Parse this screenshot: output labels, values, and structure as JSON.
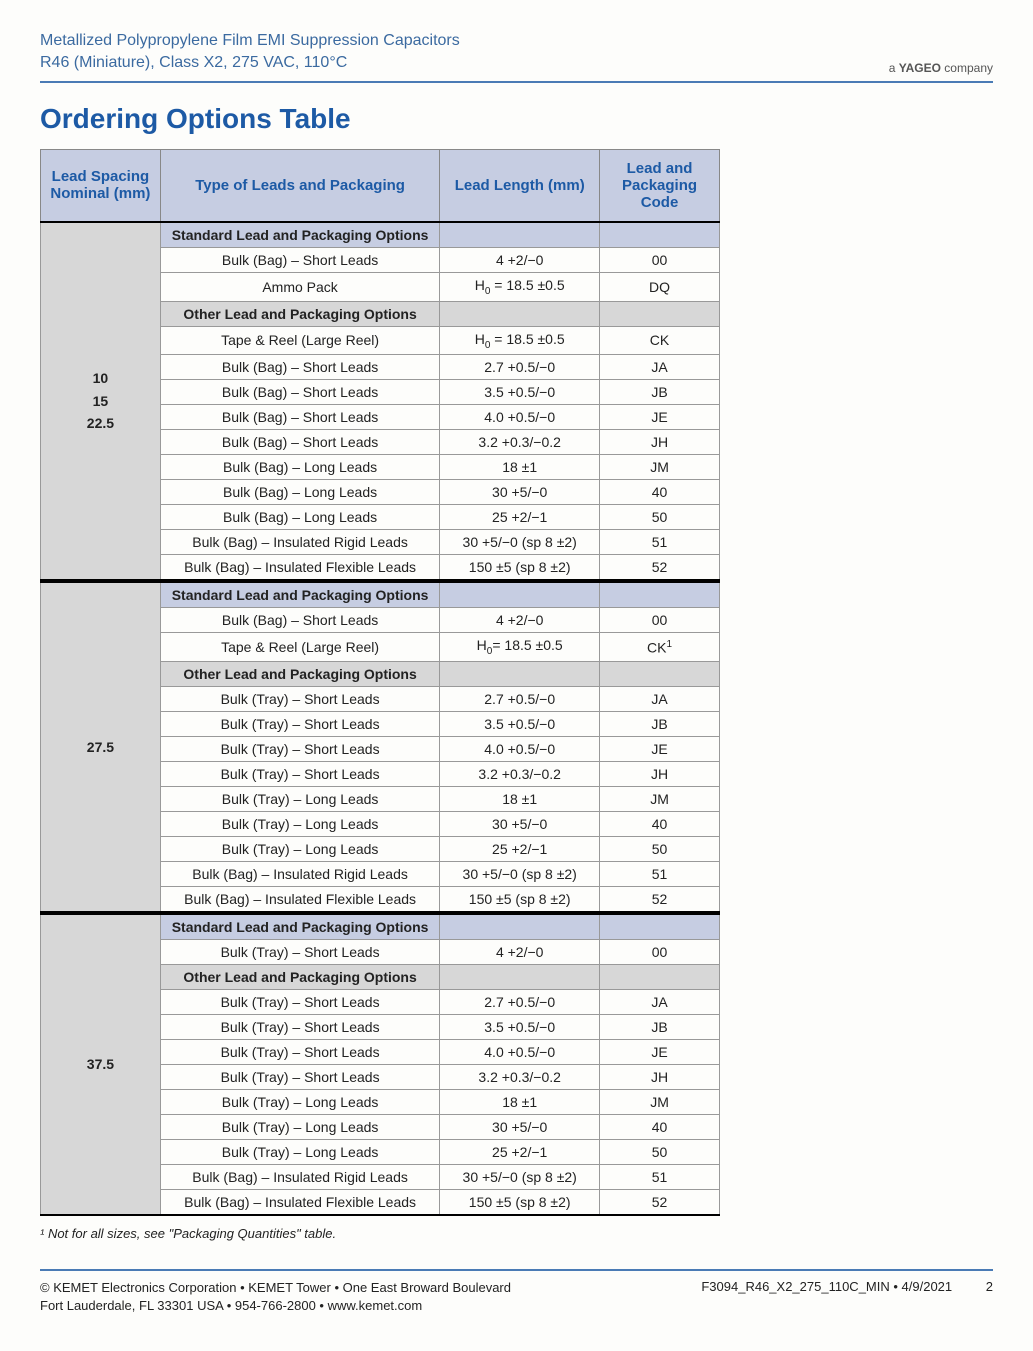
{
  "header": {
    "line1": "Metallized Polypropylene Film EMI Suppression Capacitors",
    "line2": "R46 (Miniature), Class X2, 275 VAC, 110°C",
    "company": "a YAGEO company"
  },
  "title": "Ordering Options Table",
  "columns": {
    "c1": "Lead Spacing Nominal (mm)",
    "c2": "Type of Leads and Packaging",
    "c3": "Lead Length (mm)",
    "c4": "Lead and Packaging Code"
  },
  "section_labels": {
    "std": "Standard Lead and Packaging Options",
    "other": "Other Lead and Packaging Options"
  },
  "blocks": [
    {
      "spacing": "10\n15\n22.5",
      "standard": [
        {
          "type": "Bulk (Bag) – Short Leads",
          "len": "4 +2/−0",
          "code": "00"
        },
        {
          "type": "Ammo Pack",
          "len": "H0 = 18.5 ±0.5",
          "code": "DQ",
          "h0sub": true
        }
      ],
      "other": [
        {
          "type": "Tape & Reel (Large Reel)",
          "len": "H0 = 18.5 ±0.5",
          "code": "CK",
          "h0sub": true
        },
        {
          "type": "Bulk (Bag) – Short Leads",
          "len": "2.7 +0.5/−0",
          "code": "JA"
        },
        {
          "type": "Bulk (Bag) – Short Leads",
          "len": "3.5 +0.5/−0",
          "code": "JB"
        },
        {
          "type": "Bulk (Bag) – Short Leads",
          "len": "4.0 +0.5/−0",
          "code": "JE"
        },
        {
          "type": "Bulk (Bag) – Short Leads",
          "len": "3.2 +0.3/−0.2",
          "code": "JH"
        },
        {
          "type": "Bulk (Bag) – Long Leads",
          "len": "18 ±1",
          "code": "JM"
        },
        {
          "type": "Bulk (Bag) – Long Leads",
          "len": "30 +5/−0",
          "code": "40"
        },
        {
          "type": "Bulk (Bag) – Long Leads",
          "len": "25 +2/−1",
          "code": "50"
        },
        {
          "type": "Bulk (Bag) – Insulated Rigid Leads",
          "len": "30 +5/−0 (sp 8 ±2)",
          "code": "51"
        },
        {
          "type": "Bulk (Bag) – Insulated Flexible Leads",
          "len": "150 ±5 (sp 8 ±2)",
          "code": "52"
        }
      ]
    },
    {
      "spacing": "27.5",
      "standard": [
        {
          "type": "Bulk (Bag) – Short Leads",
          "len": "4 +2/−0",
          "code": "00"
        },
        {
          "type": "Tape & Reel (Large Reel)",
          "len": "H0= 18.5 ±0.5",
          "code": "CK",
          "code_sup": "1",
          "h0sub": true
        }
      ],
      "other": [
        {
          "type": "Bulk (Tray) – Short Leads",
          "len": "2.7 +0.5/−0",
          "code": "JA"
        },
        {
          "type": "Bulk (Tray) – Short Leads",
          "len": "3.5 +0.5/−0",
          "code": "JB"
        },
        {
          "type": "Bulk (Tray) – Short Leads",
          "len": "4.0 +0.5/−0",
          "code": "JE"
        },
        {
          "type": "Bulk (Tray) – Short Leads",
          "len": "3.2 +0.3/−0.2",
          "code": "JH"
        },
        {
          "type": "Bulk (Tray) – Long Leads",
          "len": "18 ±1",
          "code": "JM"
        },
        {
          "type": "Bulk (Tray) – Long Leads",
          "len": "30 +5/−0",
          "code": "40"
        },
        {
          "type": "Bulk (Tray) – Long Leads",
          "len": "25 +2/−1",
          "code": "50"
        },
        {
          "type": "Bulk (Bag) – Insulated Rigid Leads",
          "len": "30 +5/−0 (sp 8 ±2)",
          "code": "51"
        },
        {
          "type": "Bulk (Bag) – Insulated Flexible Leads",
          "len": "150 ±5 (sp 8 ±2)",
          "code": "52"
        }
      ]
    },
    {
      "spacing": "37.5",
      "standard": [
        {
          "type": "Bulk (Tray) – Short Leads",
          "len": "4 +2/−0",
          "code": "00"
        }
      ],
      "other": [
        {
          "type": "Bulk (Tray) – Short Leads",
          "len": "2.7 +0.5/−0",
          "code": "JA"
        },
        {
          "type": "Bulk (Tray) – Short Leads",
          "len": "3.5 +0.5/−0",
          "code": "JB"
        },
        {
          "type": "Bulk (Tray) – Short Leads",
          "len": "4.0 +0.5/−0",
          "code": "JE"
        },
        {
          "type": "Bulk (Tray) – Short Leads",
          "len": "3.2 +0.3/−0.2",
          "code": "JH"
        },
        {
          "type": "Bulk (Tray) – Long Leads",
          "len": "18 ±1",
          "code": "JM"
        },
        {
          "type": "Bulk (Tray) – Long Leads",
          "len": "30 +5/−0",
          "code": "40"
        },
        {
          "type": "Bulk (Tray) – Long Leads",
          "len": "25 +2/−1",
          "code": "50"
        },
        {
          "type": "Bulk (Bag) – Insulated Rigid Leads",
          "len": "30 +5/−0 (sp 8 ±2)",
          "code": "51"
        },
        {
          "type": "Bulk (Bag) – Insulated Flexible Leads",
          "len": "150 ±5 (sp 8 ±2)",
          "code": "52"
        }
      ]
    }
  ],
  "footnote": "¹ Not for all sizes, see \"Packaging Quantities\" table.",
  "footer": {
    "left1": "© KEMET Electronics Corporation • KEMET Tower • One East Broward Boulevard",
    "left2": "Fort Lauderdale, FL 33301 USA • 954-766-2800 • www.kemet.com",
    "right": "F3094_R46_X2_275_110C_MIN • 4/9/2021",
    "page": "2"
  }
}
